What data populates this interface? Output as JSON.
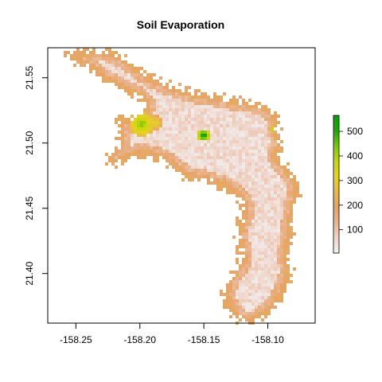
{
  "title": "Soil Evaporation",
  "map": {
    "x_ticks": [
      "-158.25",
      "-158.20",
      "-158.15",
      "-158.10"
    ],
    "x_values": [
      -158.25,
      -158.2,
      -158.15,
      -158.1
    ],
    "y_ticks": [
      "21.40",
      "21.45",
      "21.50",
      "21.55"
    ],
    "y_values": [
      21.4,
      21.45,
      21.5,
      21.55
    ],
    "xlim": [
      -158.272,
      -158.063
    ],
    "ylim": [
      21.362,
      21.573
    ]
  },
  "legend": {
    "labels": [
      "100",
      "200",
      "300",
      "400",
      "500"
    ],
    "values": [
      100,
      200,
      300,
      400,
      500
    ],
    "range": [
      5,
      565
    ],
    "colors": [
      "#f2f2f2",
      "#efd4c8",
      "#e9b48f",
      "#e6a364",
      "#e8b84a",
      "#e6d31d",
      "#c6d60e",
      "#7bc70a",
      "#1fa800",
      "#00a600"
    ]
  }
}
